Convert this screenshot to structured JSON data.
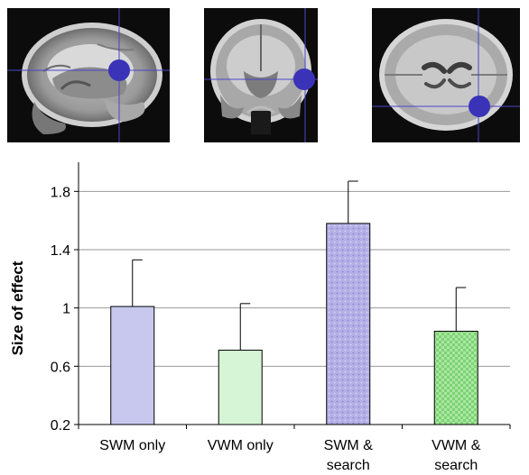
{
  "figure": {
    "panels": [
      {
        "view": "sagittal",
        "marker_color": "#3a33b8",
        "crosshair_color": "#4a46c8"
      },
      {
        "view": "coronal",
        "marker_color": "#3a33b8",
        "crosshair_color": "#4a46c8"
      },
      {
        "view": "axial",
        "marker_color": "#3a33b8",
        "crosshair_color": "#4a46c8"
      }
    ]
  },
  "chart_data": {
    "type": "bar",
    "title": "",
    "xlabel": "",
    "ylabel": "Size of effect",
    "ylim": [
      0.2,
      2.0
    ],
    "yticks": [
      0.2,
      0.6,
      1,
      1.4,
      1.8
    ],
    "ytick_labels": [
      "0.2",
      "0.6",
      "1",
      "1.4",
      "1.8"
    ],
    "grid": true,
    "categories": [
      {
        "line1": "SWM only",
        "line2": ""
      },
      {
        "line1": "VWM only",
        "line2": ""
      },
      {
        "line1": "SWM &",
        "line2": "search"
      },
      {
        "line1": "VWM &",
        "line2": "search"
      }
    ],
    "values": [
      1.01,
      0.71,
      1.58,
      0.84
    ],
    "errors": [
      0.32,
      0.32,
      0.29,
      0.3
    ],
    "bar_colors": [
      "#c8c8ee",
      "#d6f4d6",
      "#b4b0e6",
      "#a8e8a0"
    ],
    "bar_patterns": [
      "none",
      "none",
      "dots",
      "checker"
    ]
  }
}
